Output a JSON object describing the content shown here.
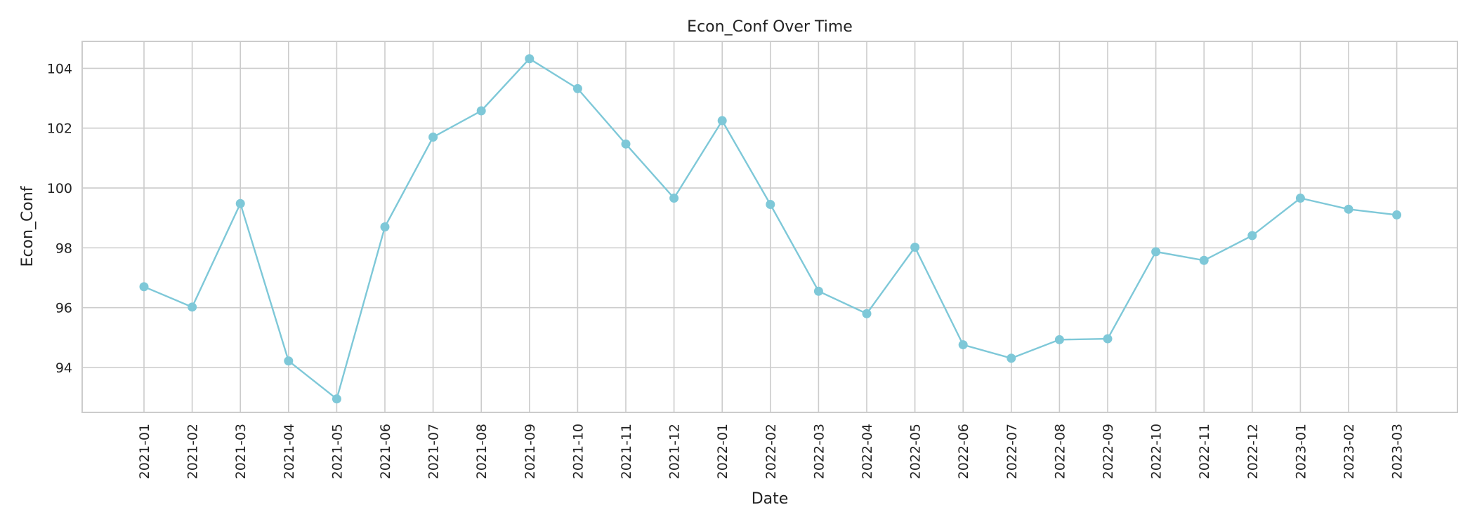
{
  "chart_data": {
    "type": "line",
    "title": "Econ_Conf Over Time",
    "xlabel": "Date",
    "ylabel": "Econ_Conf",
    "x": [
      "2021-01",
      "2021-02",
      "2021-03",
      "2021-04",
      "2021-05",
      "2021-06",
      "2021-07",
      "2021-08",
      "2021-09",
      "2021-10",
      "2021-11",
      "2021-12",
      "2022-01",
      "2022-02",
      "2022-03",
      "2022-04",
      "2022-05",
      "2022-06",
      "2022-07",
      "2022-08",
      "2022-09",
      "2022-10",
      "2022-11",
      "2022-12",
      "2023-01",
      "2023-02",
      "2023-03"
    ],
    "series": [
      {
        "values": [
          96.7,
          96.02,
          99.48,
          94.22,
          92.95,
          98.7,
          101.7,
          102.58,
          104.32,
          103.32,
          101.47,
          99.66,
          102.25,
          99.45,
          96.55,
          95.8,
          98.02,
          94.76,
          94.31,
          94.93,
          94.96,
          97.87,
          97.58,
          98.41,
          99.66,
          99.29,
          99.1
        ],
        "color": "#7ec8d8"
      }
    ],
    "ylim": [
      92.5,
      104.9
    ],
    "yticks": [
      94,
      96,
      98,
      100,
      102,
      104
    ],
    "grid": true,
    "legend": "none"
  }
}
